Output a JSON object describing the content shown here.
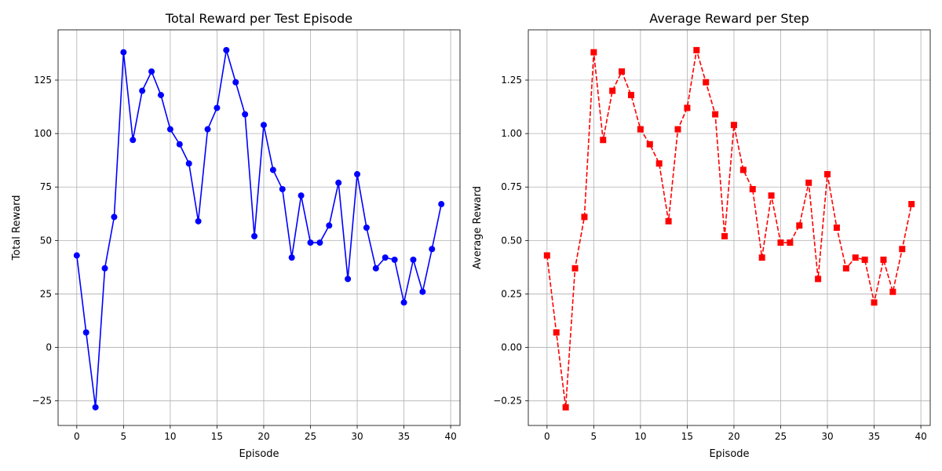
{
  "chart_data": [
    {
      "type": "line",
      "title": "Total Reward per Test Episode",
      "xlabel": "Episode",
      "ylabel": "Total Reward",
      "xlim": [
        -2,
        41
      ],
      "ylim": [
        -36.5,
        148.5
      ],
      "xticks": [
        0,
        5,
        10,
        15,
        20,
        25,
        30,
        35,
        40
      ],
      "yticks": [
        -25,
        0,
        25,
        50,
        75,
        100,
        125
      ],
      "grid": true,
      "series": [
        {
          "color": "#0000ff",
          "line_style": "solid",
          "marker": "circle",
          "x": [
            0,
            1,
            2,
            3,
            4,
            5,
            6,
            7,
            8,
            9,
            10,
            11,
            12,
            13,
            14,
            15,
            16,
            17,
            18,
            19,
            20,
            21,
            22,
            23,
            24,
            25,
            26,
            27,
            28,
            29,
            30,
            31,
            32,
            33,
            34,
            35,
            36,
            37,
            38,
            39
          ],
          "values": [
            43,
            7,
            -28,
            37,
            61,
            138,
            97,
            120,
            129,
            118,
            102,
            95,
            86,
            59,
            102,
            112,
            139,
            124,
            109,
            52,
            104,
            83,
            74,
            42,
            71,
            49,
            49,
            57,
            77,
            32,
            81,
            56,
            37,
            42,
            41,
            21,
            41,
            26,
            46,
            67
          ]
        }
      ]
    },
    {
      "type": "line",
      "title": "Average Reward per Step",
      "xlabel": "Episode",
      "ylabel": "Average Reward",
      "xlim": [
        -2,
        41
      ],
      "ylim": [
        -0.365,
        1.485
      ],
      "xticks": [
        0,
        5,
        10,
        15,
        20,
        25,
        30,
        35,
        40
      ],
      "yticks": [
        -0.25,
        0.0,
        0.25,
        0.5,
        0.75,
        1.0,
        1.25
      ],
      "ytick_labels": [
        "−0.25",
        "0.00",
        "0.25",
        "0.50",
        "0.75",
        "1.00",
        "1.25"
      ],
      "grid": true,
      "series": [
        {
          "color": "#ff0000",
          "line_style": "dashed",
          "marker": "square",
          "x": [
            0,
            1,
            2,
            3,
            4,
            5,
            6,
            7,
            8,
            9,
            10,
            11,
            12,
            13,
            14,
            15,
            16,
            17,
            18,
            19,
            20,
            21,
            22,
            23,
            24,
            25,
            26,
            27,
            28,
            29,
            30,
            31,
            32,
            33,
            34,
            35,
            36,
            37,
            38,
            39
          ],
          "values": [
            0.43,
            0.07,
            -0.28,
            0.37,
            0.61,
            1.38,
            0.97,
            1.2,
            1.29,
            1.18,
            1.02,
            0.95,
            0.86,
            0.59,
            1.02,
            1.12,
            1.39,
            1.24,
            1.09,
            0.52,
            1.04,
            0.83,
            0.74,
            0.42,
            0.71,
            0.49,
            0.49,
            0.57,
            0.77,
            0.32,
            0.81,
            0.56,
            0.37,
            0.42,
            0.41,
            0.21,
            0.41,
            0.26,
            0.46,
            0.67
          ]
        }
      ]
    }
  ]
}
